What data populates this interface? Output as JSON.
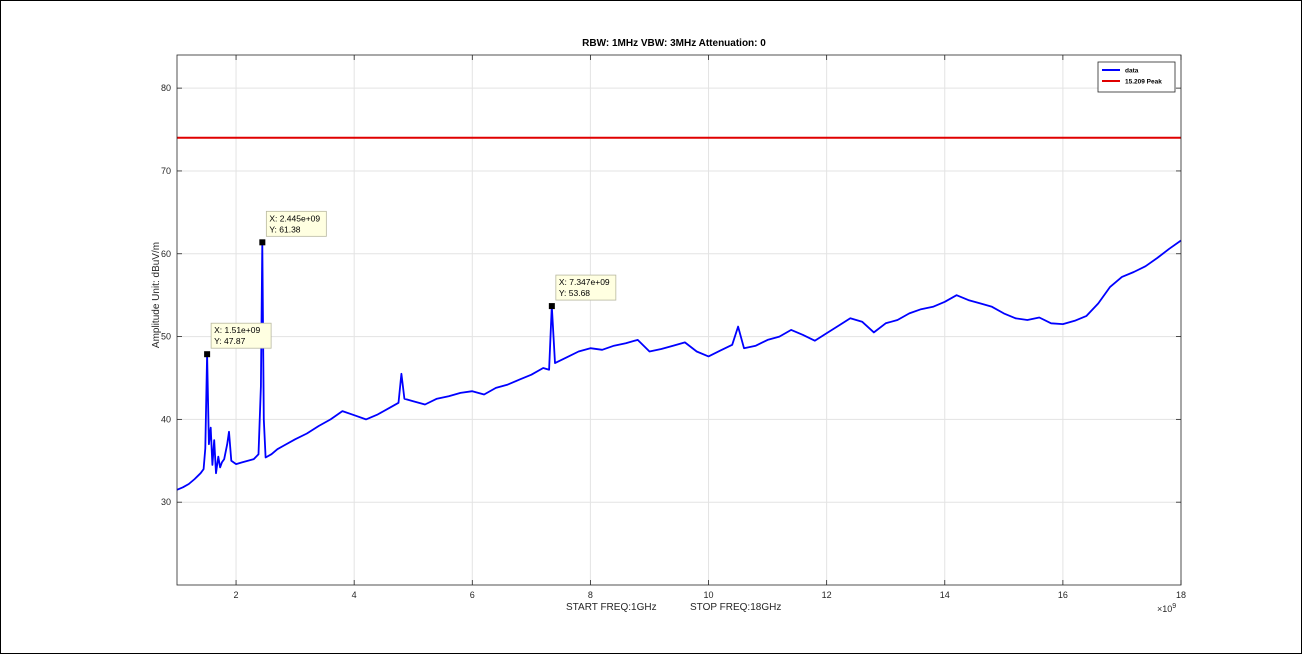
{
  "chart_data": {
    "type": "line",
    "title": "RBW: 1MHz   VBW: 3MHz  Attenuation: 0",
    "xlabel_start": "START FREQ:1GHz",
    "xlabel_stop": "STOP FREQ:18GHz",
    "ylabel": "Amplitude Unit: dBuV/m",
    "x_multiplier_label": "×10",
    "x_multiplier_exp": "9",
    "xlim": [
      1,
      18
    ],
    "ylim": [
      20,
      84
    ],
    "x_ticks": [
      2,
      4,
      6,
      8,
      10,
      12,
      14,
      16,
      18
    ],
    "y_ticks": [
      30,
      40,
      50,
      60,
      70,
      80
    ],
    "grid": true,
    "legend_position": "top-right",
    "series": [
      {
        "name": "data",
        "color": "#0000ff",
        "x": [
          1.0,
          1.1,
          1.2,
          1.3,
          1.4,
          1.45,
          1.48,
          1.51,
          1.54,
          1.57,
          1.6,
          1.63,
          1.66,
          1.7,
          1.73,
          1.76,
          1.8,
          1.85,
          1.88,
          1.92,
          2.0,
          2.1,
          2.2,
          2.3,
          2.38,
          2.42,
          2.445,
          2.47,
          2.5,
          2.6,
          2.7,
          2.8,
          3.0,
          3.2,
          3.4,
          3.6,
          3.8,
          4.0,
          4.2,
          4.4,
          4.6,
          4.75,
          4.8,
          4.85,
          5.0,
          5.2,
          5.4,
          5.6,
          5.8,
          6.0,
          6.2,
          6.4,
          6.6,
          6.8,
          7.0,
          7.2,
          7.3,
          7.347,
          7.4,
          7.6,
          7.8,
          8.0,
          8.2,
          8.4,
          8.6,
          8.8,
          9.0,
          9.2,
          9.4,
          9.6,
          9.8,
          10.0,
          10.2,
          10.4,
          10.5,
          10.6,
          10.8,
          11.0,
          11.2,
          11.4,
          11.6,
          11.8,
          12.0,
          12.2,
          12.4,
          12.6,
          12.8,
          13.0,
          13.2,
          13.4,
          13.6,
          13.8,
          14.0,
          14.2,
          14.4,
          14.6,
          14.8,
          15.0,
          15.2,
          15.4,
          15.6,
          15.8,
          16.0,
          16.2,
          16.4,
          16.6,
          16.8,
          17.0,
          17.2,
          17.4,
          17.6,
          17.8,
          18.0
        ],
        "y": [
          31.5,
          31.8,
          32.2,
          32.8,
          33.5,
          34.0,
          36.5,
          47.87,
          37.0,
          39.0,
          34.5,
          37.5,
          33.5,
          35.5,
          34.2,
          34.8,
          35.2,
          37.0,
          38.5,
          35.0,
          34.6,
          34.8,
          35.0,
          35.2,
          35.8,
          44.0,
          61.38,
          40.0,
          35.4,
          35.8,
          36.4,
          36.8,
          37.6,
          38.3,
          39.2,
          40.0,
          41.0,
          40.5,
          40.0,
          40.6,
          41.4,
          42.0,
          45.5,
          42.5,
          42.2,
          41.8,
          42.5,
          42.8,
          43.2,
          43.4,
          43.0,
          43.8,
          44.2,
          44.8,
          45.4,
          46.2,
          46.0,
          53.68,
          46.8,
          47.5,
          48.2,
          48.6,
          48.4,
          48.9,
          49.2,
          49.6,
          48.2,
          48.5,
          48.9,
          49.3,
          48.2,
          47.6,
          48.3,
          49.0,
          51.2,
          48.6,
          48.9,
          49.6,
          50.0,
          50.8,
          50.2,
          49.5,
          50.4,
          51.3,
          52.2,
          51.8,
          50.5,
          51.6,
          52.0,
          52.8,
          53.3,
          53.6,
          54.2,
          55.0,
          54.4,
          54.0,
          53.6,
          52.8,
          52.2,
          52.0,
          52.3,
          51.6,
          51.5,
          51.9,
          52.5,
          54.0,
          56.0,
          57.2,
          57.8,
          58.5,
          59.5,
          60.6,
          61.6
        ]
      },
      {
        "name": "15.209 Peak",
        "color": "#e00000",
        "x": [
          1,
          18
        ],
        "y": [
          74,
          74
        ]
      }
    ],
    "annotations": [
      {
        "x": 1.51,
        "y": 47.87,
        "line1": "X: 1.51e+09",
        "line2": "Y: 47.87"
      },
      {
        "x": 2.445,
        "y": 61.38,
        "line1": "X: 2.445e+09",
        "line2": "Y: 61.38"
      },
      {
        "x": 7.347,
        "y": 53.68,
        "line1": "X: 7.347e+09",
        "line2": "Y: 53.68"
      }
    ]
  }
}
